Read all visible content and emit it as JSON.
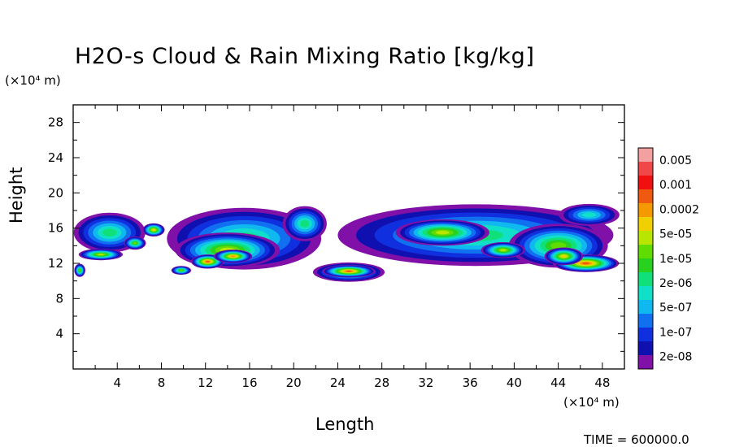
{
  "chart_data": {
    "type": "heatmap",
    "title": "H2O-s Cloud & Rain Mixing Ratio [kg/kg]",
    "xlabel": "Length",
    "ylabel": "Height",
    "x_unit": "(×10⁴ m)",
    "y_unit": "(×10⁴ m)",
    "x_ticks": [
      4,
      8,
      12,
      16,
      20,
      24,
      28,
      32,
      36,
      40,
      44,
      48
    ],
    "y_ticks": [
      4,
      8,
      12,
      16,
      20,
      24,
      28
    ],
    "xlim": [
      0,
      50
    ],
    "ylim": [
      0,
      30
    ],
    "colorbar": {
      "labels": [
        "0.005",
        "0.001",
        "0.0002",
        "5e-05",
        "1e-05",
        "2e-06",
        "5e-07",
        "1e-07",
        "2e-08"
      ],
      "colors": [
        "#f2a0a0",
        "#f04848",
        "#f01010",
        "#f05a10",
        "#f49a00",
        "#f0d000",
        "#b8e600",
        "#60dc00",
        "#28d020",
        "#10e07a",
        "#10e0c8",
        "#10b8f0",
        "#1070f0",
        "#1030e0",
        "#1010b0",
        "#8010a8"
      ]
    },
    "clouds": [
      {
        "x": 3.3,
        "y": 15.5,
        "w": 6.5,
        "h": 4.5,
        "level": 6
      },
      {
        "x": 5.6,
        "y": 14.3,
        "w": 2.0,
        "h": 1.5,
        "level": 8
      },
      {
        "x": 2.5,
        "y": 13.0,
        "w": 4.0,
        "h": 1.3,
        "level": 9
      },
      {
        "x": 0.6,
        "y": 11.2,
        "w": 1.0,
        "h": 1.5,
        "level": 8
      },
      {
        "x": 7.3,
        "y": 15.8,
        "w": 2.0,
        "h": 1.5,
        "level": 10
      },
      {
        "x": 15.5,
        "y": 14.8,
        "w": 14.0,
        "h": 7.0,
        "level": 6
      },
      {
        "x": 14.0,
        "y": 13.5,
        "w": 9.5,
        "h": 4.0,
        "level": 9
      },
      {
        "x": 12.2,
        "y": 12.2,
        "w": 3.0,
        "h": 1.6,
        "level": 12
      },
      {
        "x": 14.5,
        "y": 12.8,
        "w": 3.5,
        "h": 1.5,
        "level": 11
      },
      {
        "x": 21.0,
        "y": 16.5,
        "w": 4.0,
        "h": 4.0,
        "level": 6
      },
      {
        "x": 9.8,
        "y": 11.2,
        "w": 1.8,
        "h": 1.0,
        "level": 8
      },
      {
        "x": 25.0,
        "y": 11.0,
        "w": 6.5,
        "h": 2.2,
        "level": 7
      },
      {
        "x": 25.0,
        "y": 11.1,
        "w": 4.8,
        "h": 1.4,
        "level": 12
      },
      {
        "x": 36.5,
        "y": 15.2,
        "w": 25.0,
        "h": 7.0,
        "level": 6
      },
      {
        "x": 33.5,
        "y": 15.5,
        "w": 8.5,
        "h": 3.0,
        "level": 9
      },
      {
        "x": 44.0,
        "y": 14.0,
        "w": 9.0,
        "h": 5.0,
        "level": 8
      },
      {
        "x": 46.5,
        "y": 12.0,
        "w": 6.0,
        "h": 2.0,
        "level": 12
      },
      {
        "x": 44.5,
        "y": 12.8,
        "w": 3.5,
        "h": 2.0,
        "level": 10
      },
      {
        "x": 46.8,
        "y": 17.5,
        "w": 5.5,
        "h": 2.5,
        "level": 5
      },
      {
        "x": 39.0,
        "y": 13.5,
        "w": 4.0,
        "h": 1.8,
        "level": 9
      }
    ]
  },
  "title": "H2O-s Cloud & Rain Mixing Ratio [kg/kg]",
  "x_unit": "(×10⁴ m)",
  "y_unit": "(×10⁴ m)",
  "xlabel": "Length",
  "ylabel": "Height",
  "time_label": "TIME = 600000.0"
}
